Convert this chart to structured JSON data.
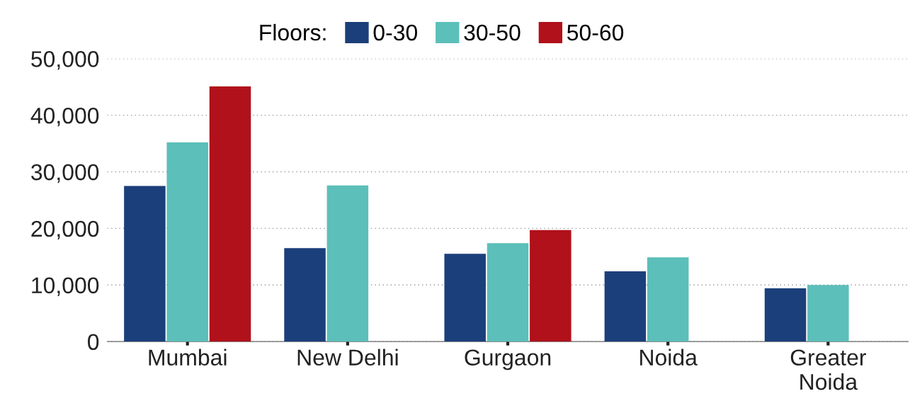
{
  "chart_data": {
    "type": "bar",
    "legend_title": "Floors:",
    "categories": [
      "Mumbai",
      "New Delhi",
      "Gurgaon",
      "Noida",
      "Greater\nNoida"
    ],
    "series": [
      {
        "name": "0-30",
        "color": "#1b3f7a",
        "values": [
          27500,
          16500,
          15500,
          12400,
          9400
        ]
      },
      {
        "name": "30-50",
        "color": "#5cbfb9",
        "values": [
          35200,
          27600,
          17400,
          14900,
          10000
        ]
      },
      {
        "name": "50-60",
        "color": "#b0111a",
        "values": [
          45100,
          null,
          19700,
          null,
          null
        ]
      }
    ],
    "ylim": [
      0,
      50000
    ],
    "yticks": [
      {
        "value": 0,
        "label": "0"
      },
      {
        "value": 10000,
        "label": "10,000"
      },
      {
        "value": 20000,
        "label": "20,000"
      },
      {
        "value": 30000,
        "label": "30,000"
      },
      {
        "value": 40000,
        "label": "40,000"
      },
      {
        "value": 50000,
        "label": "50,000"
      }
    ],
    "grid": "y",
    "legend": "top"
  }
}
